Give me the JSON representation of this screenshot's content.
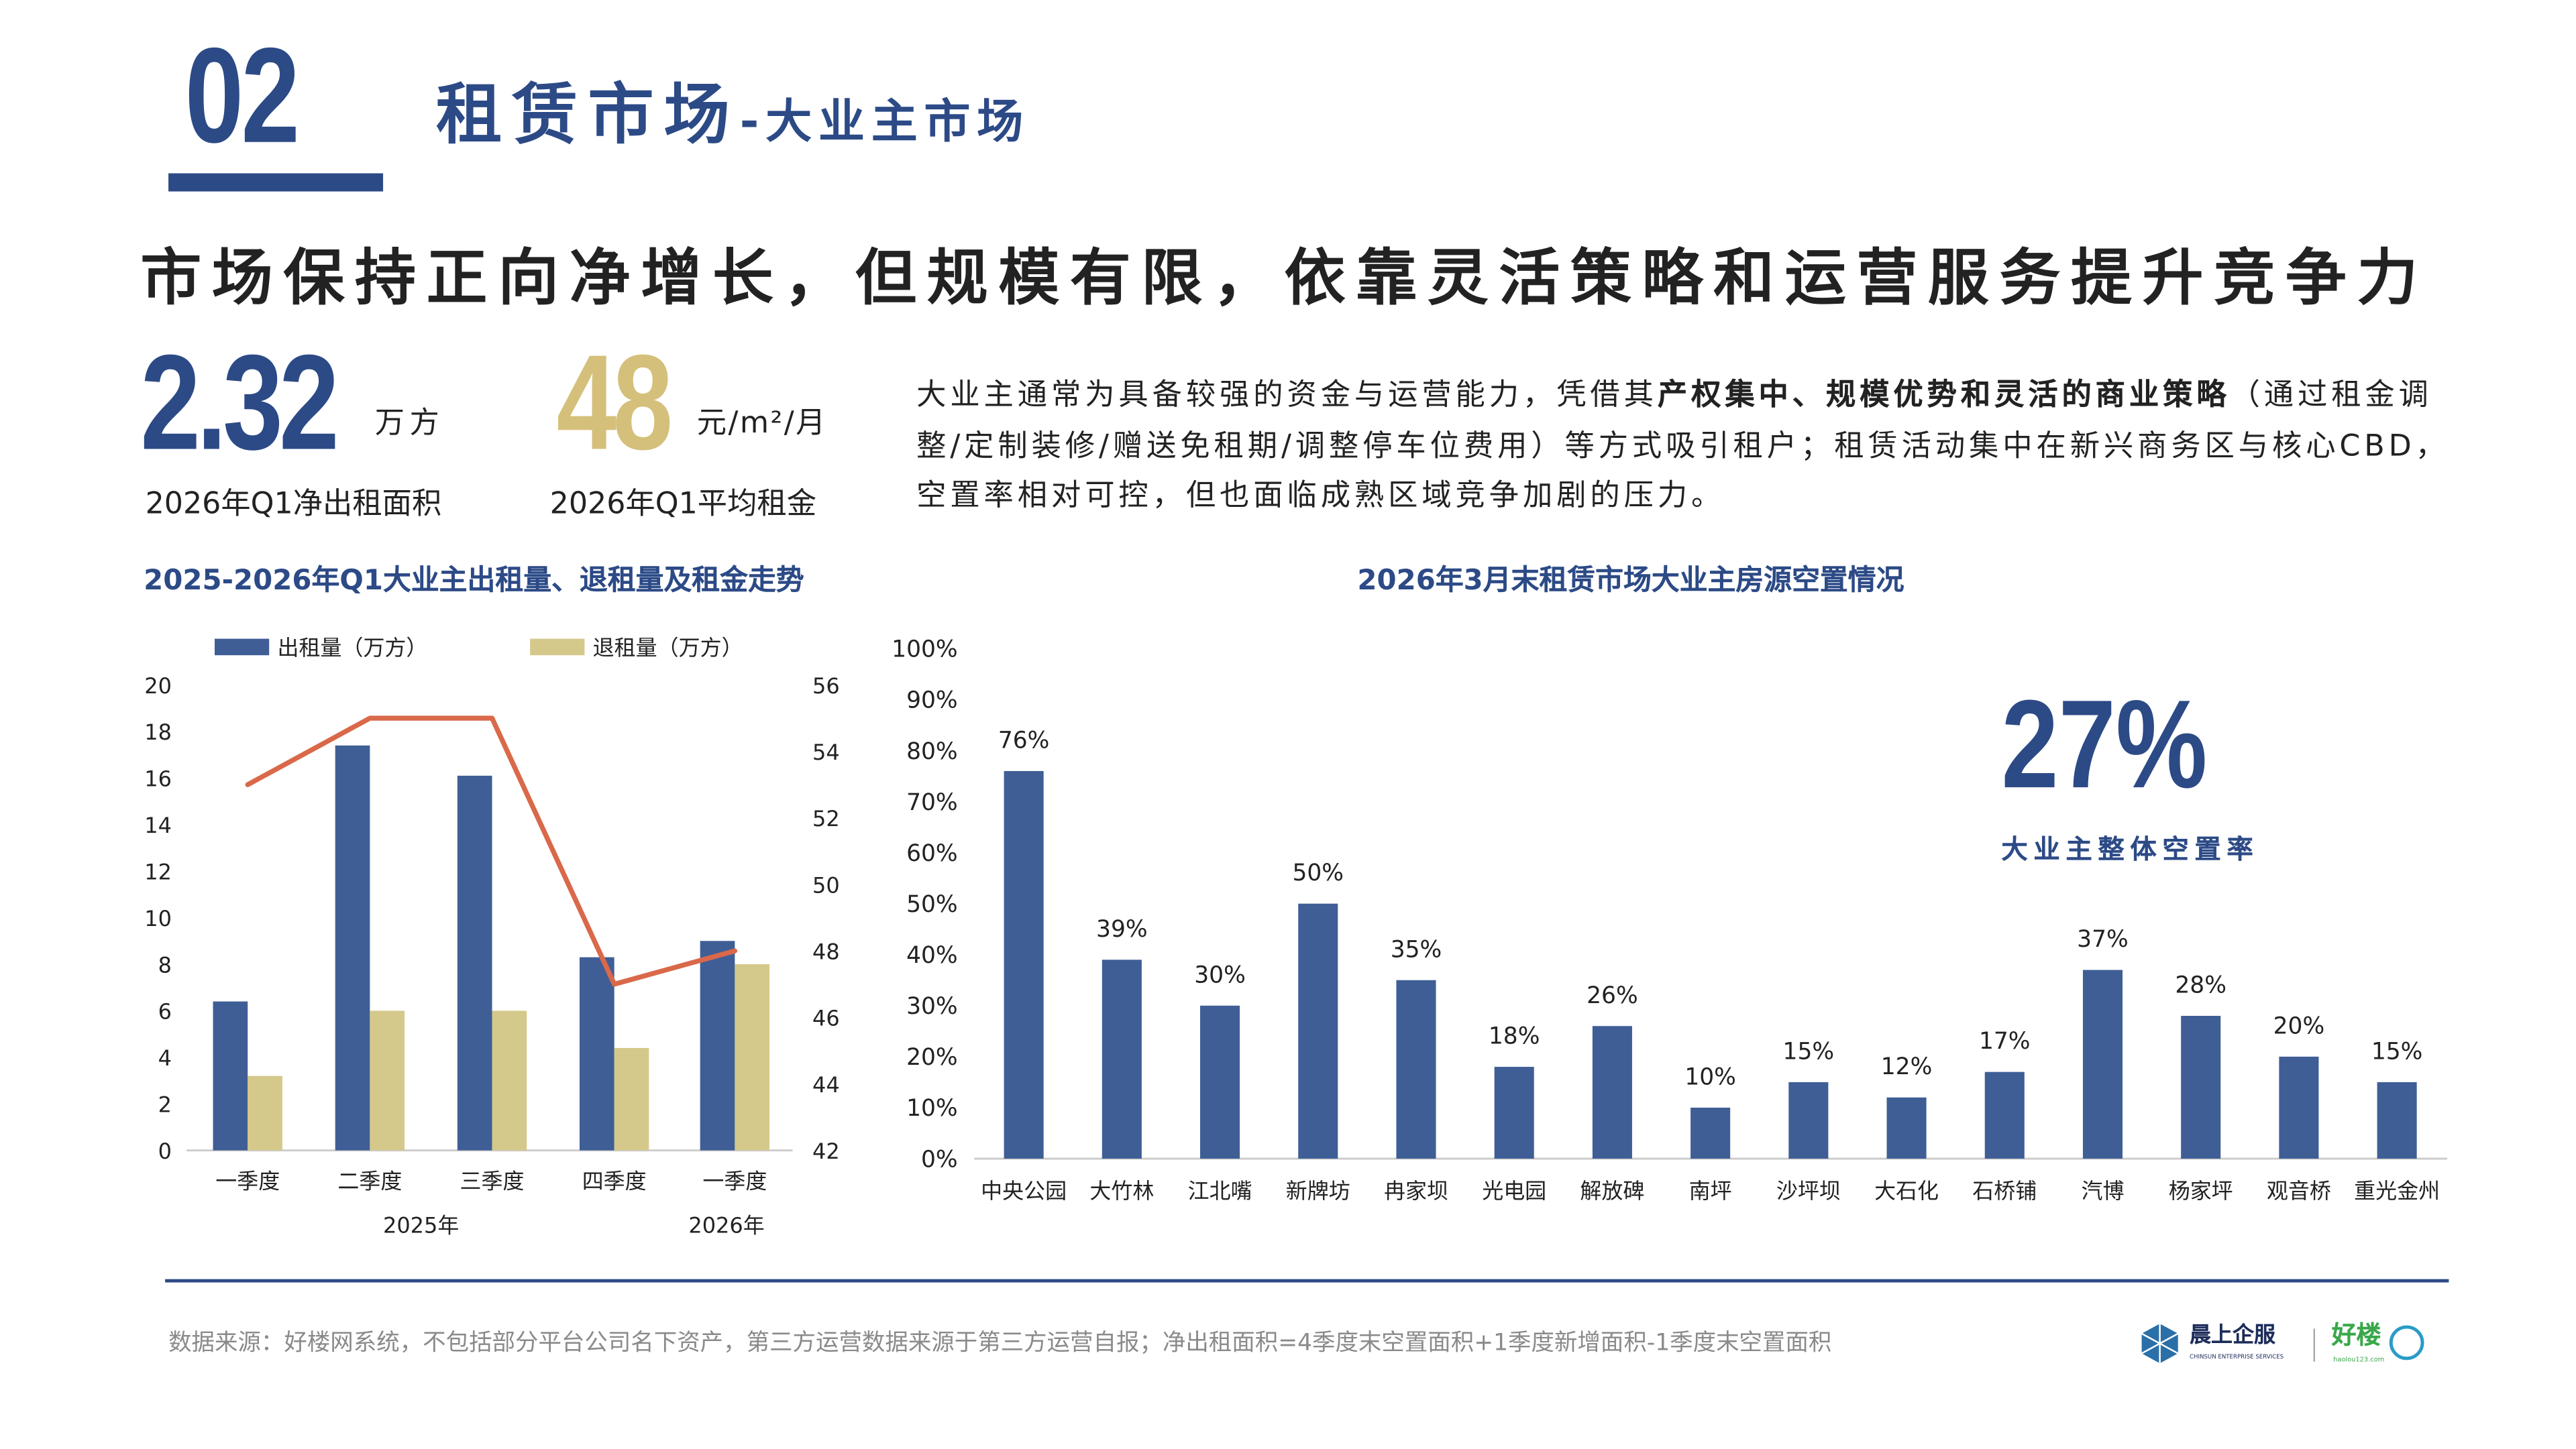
{
  "header": {
    "section_number": "02",
    "title": "租赁市场",
    "subtitle": "-大业主市场"
  },
  "headline": "市场保持正向净增长，但规模有限，依靠灵活策略和运营服务提升竞争力",
  "kpis": [
    {
      "value": "2.32",
      "unit": "万方",
      "label": "2026年Q1净出租面积"
    },
    {
      "value": "48",
      "unit": "元/m²/月",
      "label": "2026年Q1平均租金"
    }
  ],
  "paragraph": {
    "part1": "大业主通常为具备较强的资金与运营能力，凭借其",
    "bold": "产权集中、规模优势和灵活的商业策略",
    "part2": "（通过租金调整/定制装修/赠送免租期/调整停车位费用）等方式吸引租户；租赁活动集中在新兴商务区与核心CBD，空置率相对可控，但也面临成熟区域竞争加剧的压力。"
  },
  "colors": {
    "navy": "#2c4a86",
    "bar_blue": "#3f5e96",
    "gold": "#d5c88b",
    "line_orange": "#d9694a",
    "kpi_gold": "#d4c07a"
  },
  "chart_data": [
    {
      "type": "bar+line",
      "title": "2025-2026年Q1大业主出租量、退租量及租金走势",
      "categories": [
        "一季度",
        "二季度",
        "三季度",
        "四季度",
        "一季度"
      ],
      "year_groups": [
        {
          "label": "2025年",
          "span": [
            0,
            3
          ]
        },
        {
          "label": "2026年",
          "span": [
            4,
            4
          ]
        }
      ],
      "series": [
        {
          "name": "出租量（万方）",
          "type": "bar",
          "axis": "left",
          "values": [
            6.4,
            17.4,
            16.1,
            8.3,
            9.0
          ]
        },
        {
          "name": "退租量（万方）",
          "type": "bar",
          "axis": "left",
          "values": [
            3.2,
            6.0,
            6.0,
            4.4,
            8.0
          ]
        },
        {
          "type": "line",
          "axis": "right",
          "values": [
            53,
            55,
            55,
            47,
            48
          ]
        }
      ],
      "y_left": {
        "range": [
          0,
          20
        ],
        "ticks": [
          "0",
          "2",
          "4",
          "6",
          "8",
          "10",
          "12",
          "14",
          "16",
          "18",
          "20"
        ]
      },
      "y_right": {
        "range": [
          42,
          56
        ],
        "ticks": [
          "42",
          "44",
          "46",
          "48",
          "50",
          "52",
          "54",
          "56"
        ]
      },
      "legend": "top",
      "grid": false
    },
    {
      "type": "bar",
      "title": "2026年3月末租赁市场大业主房源空置情况",
      "categories": [
        "中央公园",
        "大竹林",
        "江北嘴",
        "新牌坊",
        "冉家坝",
        "光电园",
        "解放碑",
        "南坪",
        "沙坪坝",
        "大石化",
        "石桥铺",
        "汽博",
        "杨家坪",
        "观音桥",
        "重光金州"
      ],
      "values": [
        76,
        39,
        30,
        50,
        35,
        18,
        26,
        10,
        15,
        12,
        17,
        37,
        28,
        20,
        15
      ],
      "data_labels": [
        "76%",
        "39%",
        "30%",
        "50%",
        "35%",
        "18%",
        "26%",
        "10%",
        "15%",
        "12%",
        "17%",
        "37%",
        "28%",
        "20%",
        "15%"
      ],
      "y": {
        "range": [
          0,
          100
        ],
        "ticks": [
          "0%",
          "10%",
          "20%",
          "30%",
          "40%",
          "50%",
          "60%",
          "70%",
          "80%",
          "90%",
          "100%"
        ]
      },
      "annotation": {
        "value": "27%",
        "label": "大业主整体空置率"
      },
      "grid": false
    }
  ],
  "footer": {
    "source": "数据来源：好楼网系统，不包括部分平台公司名下资产，第三方运营数据来源于第三方运营自报；净出租面积=4季度末空置面积+1季度新增面积-1季度末空置面积",
    "logo1": "晨上企服",
    "logo1_en": "CHINSUN ENTERPRISE SERVICES",
    "logo2": "好楼",
    "logo2_url": "haolou123.com"
  }
}
